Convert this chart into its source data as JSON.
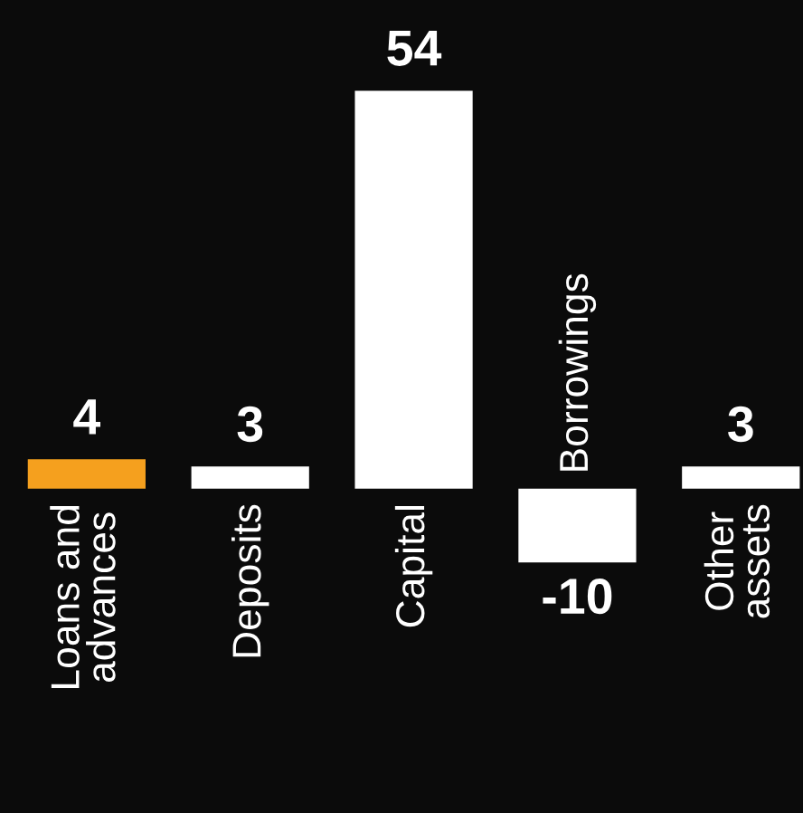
{
  "chart_data": {
    "type": "bar",
    "categories": [
      "Loans and\nadvances",
      "Deposits",
      "Capital",
      "Borrowings",
      "Other\nassets"
    ],
    "values": [
      4,
      3,
      54,
      -10,
      3
    ],
    "colors": [
      "#f5a01e",
      "#ffffff",
      "#ffffff",
      "#ffffff",
      "#ffffff"
    ],
    "data_labels": true
  }
}
